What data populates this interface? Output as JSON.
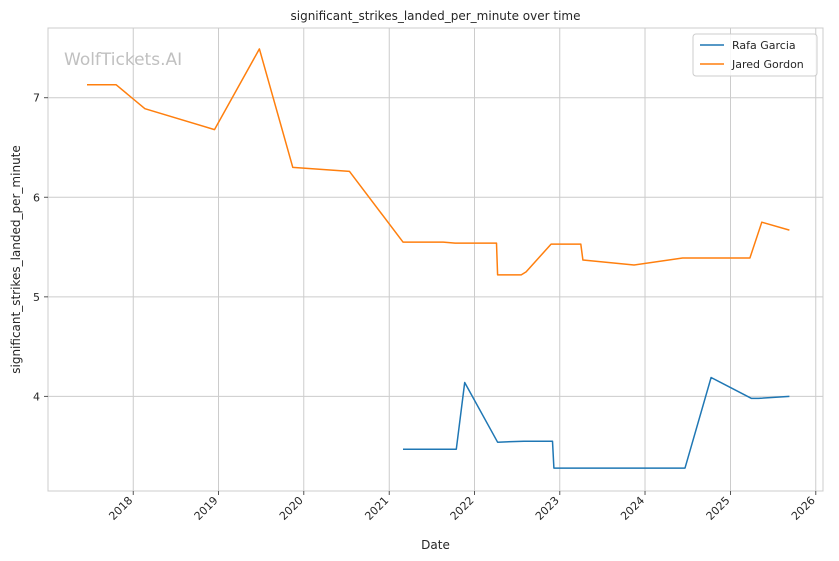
{
  "chart_data": {
    "type": "line",
    "title": "significant_strikes_landed_per_minute over time",
    "xlabel": "Date",
    "ylabel": "significant_strikes_landed_per_minute",
    "x_range": [
      "2017-01-01",
      "2026-02-01"
    ],
    "ylim": [
      3.05,
      7.7
    ],
    "x_ticks": [
      "2018",
      "2019",
      "2020",
      "2021",
      "2022",
      "2023",
      "2024",
      "2025",
      "2026"
    ],
    "y_ticks": [
      "4",
      "5",
      "6",
      "7"
    ],
    "grid": true,
    "legend_position": "top-right",
    "watermark": "WolfTickets.AI",
    "series": [
      {
        "name": "Rafa Garcia",
        "color": "#1f77b4",
        "points": [
          {
            "date": "2021-03-01",
            "value": 3.47
          },
          {
            "date": "2021-10-15",
            "value": 3.47
          },
          {
            "date": "2021-11-20",
            "value": 4.14
          },
          {
            "date": "2022-04-10",
            "value": 3.54
          },
          {
            "date": "2022-08-01",
            "value": 3.55
          },
          {
            "date": "2022-12-01",
            "value": 3.55
          },
          {
            "date": "2022-12-07",
            "value": 3.28
          },
          {
            "date": "2024-06-20",
            "value": 3.28
          },
          {
            "date": "2024-10-10",
            "value": 4.19
          },
          {
            "date": "2025-04-01",
            "value": 3.98
          },
          {
            "date": "2025-05-01",
            "value": 3.98
          },
          {
            "date": "2025-09-10",
            "value": 4.0
          }
        ]
      },
      {
        "name": "Jared Gordon",
        "color": "#ff7f0e",
        "points": [
          {
            "date": "2017-06-17",
            "value": 7.13
          },
          {
            "date": "2017-10-20",
            "value": 7.13
          },
          {
            "date": "2018-02-20",
            "value": 6.89
          },
          {
            "date": "2018-12-15",
            "value": 6.68
          },
          {
            "date": "2019-06-25",
            "value": 7.49
          },
          {
            "date": "2019-11-15",
            "value": 6.3
          },
          {
            "date": "2020-07-15",
            "value": 6.26
          },
          {
            "date": "2021-03-01",
            "value": 5.55
          },
          {
            "date": "2021-08-20",
            "value": 5.55
          },
          {
            "date": "2021-10-10",
            "value": 5.54
          },
          {
            "date": "2022-04-05",
            "value": 5.54
          },
          {
            "date": "2022-04-10",
            "value": 5.22
          },
          {
            "date": "2022-07-20",
            "value": 5.22
          },
          {
            "date": "2022-08-10",
            "value": 5.25
          },
          {
            "date": "2022-11-25",
            "value": 5.53
          },
          {
            "date": "2023-04-01",
            "value": 5.53
          },
          {
            "date": "2023-04-10",
            "value": 5.37
          },
          {
            "date": "2023-11-15",
            "value": 5.32
          },
          {
            "date": "2024-06-10",
            "value": 5.39
          },
          {
            "date": "2025-03-25",
            "value": 5.39
          },
          {
            "date": "2025-05-15",
            "value": 5.75
          },
          {
            "date": "2025-09-10",
            "value": 5.67
          }
        ]
      }
    ]
  }
}
